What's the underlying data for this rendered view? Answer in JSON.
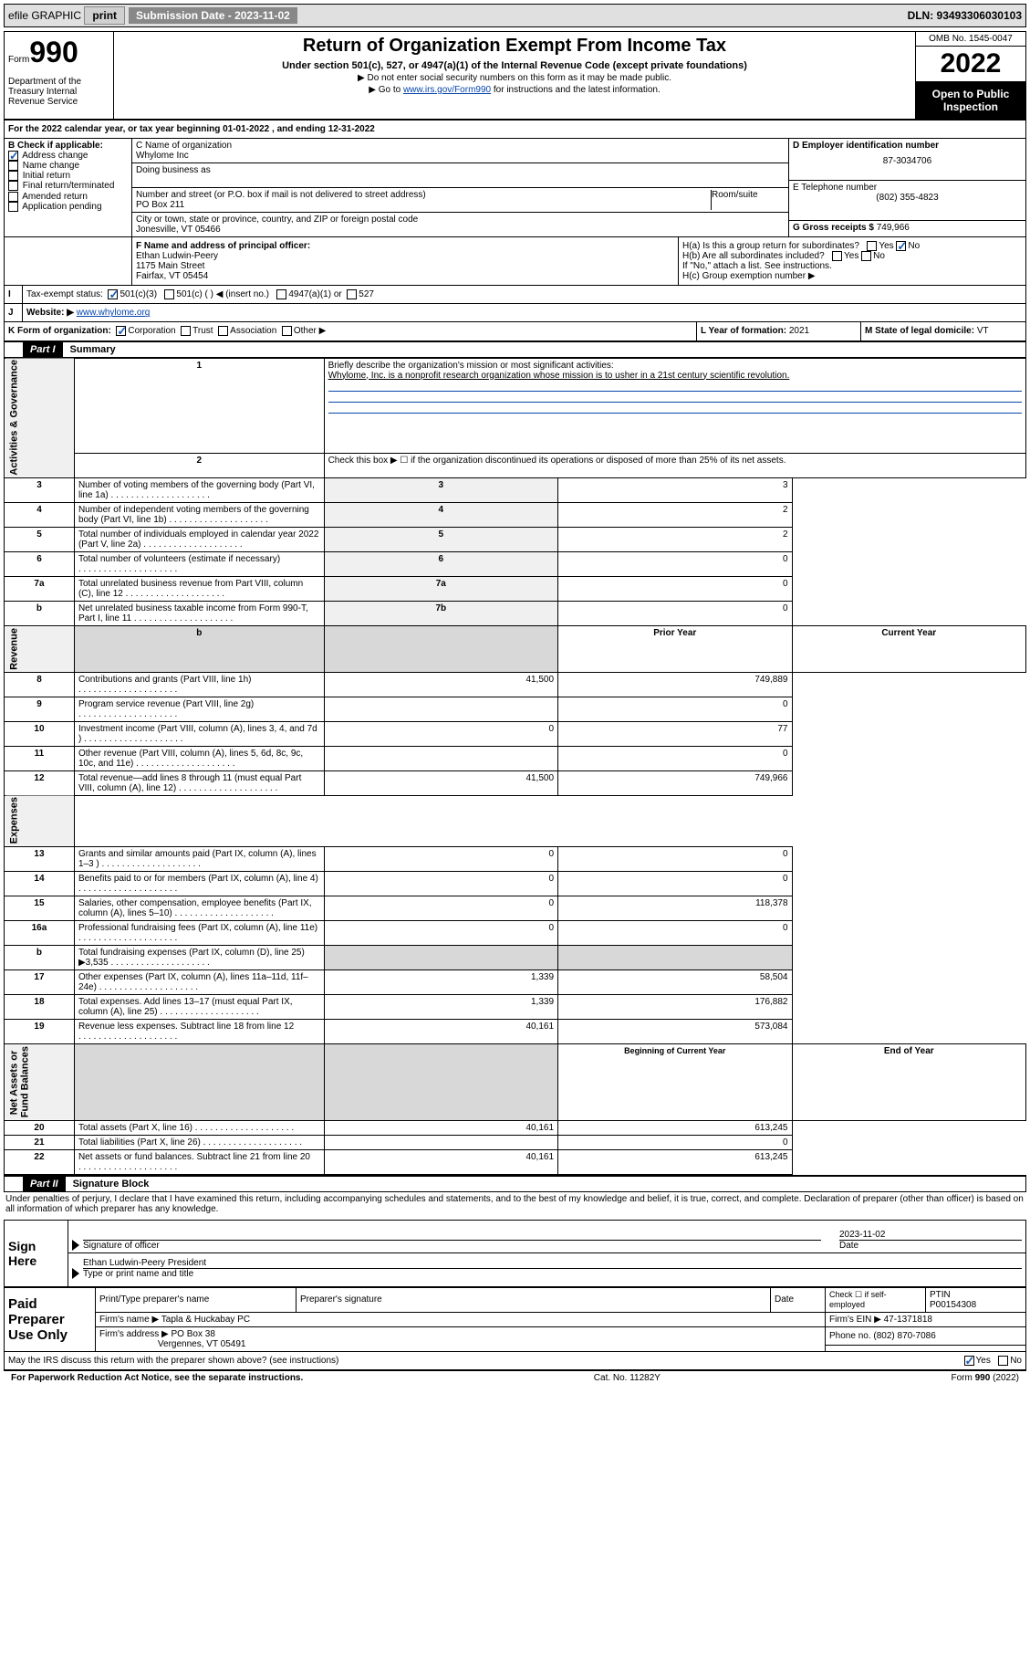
{
  "topbar": {
    "efile": "efile GRAPHIC",
    "print": "print",
    "sub_label": "Submission Date - 2023-11-02",
    "dln": "DLN: 93493306030103"
  },
  "header": {
    "form_prefix": "Form",
    "form_no": "990",
    "dept": "Department of the Treasury Internal Revenue Service",
    "title": "Return of Organization Exempt From Income Tax",
    "sub1": "Under section 501(c), 527, or 4947(a)(1) of the Internal Revenue Code (except private foundations)",
    "sub2": "▶ Do not enter social security numbers on this form as it may be made public.",
    "sub3_pre": "▶ Go to ",
    "sub3_link": "www.irs.gov/Form990",
    "sub3_post": " for instructions and the latest information.",
    "omb": "OMB No. 1545-0047",
    "year": "2022",
    "open": "Open to Public Inspection"
  },
  "line_a": "For the 2022 calendar year, or tax year beginning 01-01-2022   , and ending 12-31-2022",
  "B": {
    "title": "B Check if applicable:",
    "items": [
      "Address change",
      "Name change",
      "Initial return",
      "Final return/terminated",
      "Amended return",
      "Application pending"
    ],
    "checked_index": 0
  },
  "C": {
    "label_name": "C Name of organization",
    "org": "Whylome Inc",
    "dba_label": "Doing business as",
    "addr_label": "Number and street (or P.O. box if mail is not delivered to street address)",
    "addr": "PO Box 211",
    "room_label": "Room/suite",
    "city_label": "City or town, state or province, country, and ZIP or foreign postal code",
    "city": "Jonesville, VT  05466"
  },
  "D": {
    "label": "D Employer identification number",
    "value": "87-3034706"
  },
  "E": {
    "label": "E Telephone number",
    "value": "(802) 355-4823"
  },
  "G": {
    "label": "G Gross receipts $",
    "value": "749,966"
  },
  "F": {
    "label": "F Name and address of principal officer:",
    "name": "Ethan Ludwin-Peery",
    "addr1": "1175 Main Street",
    "addr2": "Fairfax, VT  05454"
  },
  "H": {
    "a": "H(a)  Is this a group return for subordinates?",
    "b": "H(b)  Are all subordinates included?",
    "b_note": "If \"No,\" attach a list. See instructions.",
    "c": "H(c)  Group exemption number ▶"
  },
  "I": {
    "label": "Tax-exempt status:",
    "c3": "501(c)(3)",
    "c": "501(c) (  ) ◀ (insert no.)",
    "a1": "4947(a)(1) or",
    "s527": "527"
  },
  "J": {
    "label": "Website: ▶",
    "value": "www.whylome.org"
  },
  "K": {
    "label": "K Form of organization:",
    "opts": [
      "Corporation",
      "Trust",
      "Association",
      "Other ▶"
    ]
  },
  "L": {
    "label": "L Year of formation:",
    "value": "2021"
  },
  "M": {
    "label": "M State of legal domicile:",
    "value": "VT"
  },
  "part1": {
    "hdr": "Part I",
    "title": "Summary",
    "line1_label": "Briefly describe the organization's mission or most significant activities:",
    "line1_text": "Whylome, Inc. is a nonprofit research organization whose mission is to usher in a 21st century scientific revolution.",
    "line2": "Check this box ▶ ☐  if the organization discontinued its operations or disposed of more than 25% of its net assets.",
    "rows_gov": [
      {
        "n": "3",
        "t": "Number of voting members of the governing body (Part VI, line 1a)",
        "box": "3",
        "val": "3"
      },
      {
        "n": "4",
        "t": "Number of independent voting members of the governing body (Part VI, line 1b)",
        "box": "4",
        "val": "2"
      },
      {
        "n": "5",
        "t": "Total number of individuals employed in calendar year 2022 (Part V, line 2a)",
        "box": "5",
        "val": "2"
      },
      {
        "n": "6",
        "t": "Total number of volunteers (estimate if necessary)",
        "box": "6",
        "val": "0"
      },
      {
        "n": "7a",
        "t": "Total unrelated business revenue from Part VIII, column (C), line 12",
        "box": "7a",
        "val": "0"
      },
      {
        "n": "b",
        "t": "Net unrelated business taxable income from Form 990-T, Part I, line 11",
        "box": "7b",
        "val": "0"
      }
    ],
    "col_prior": "Prior Year",
    "col_current": "Current Year",
    "rows_rev": [
      {
        "n": "8",
        "t": "Contributions and grants (Part VIII, line 1h)",
        "p": "41,500",
        "c": "749,889"
      },
      {
        "n": "9",
        "t": "Program service revenue (Part VIII, line 2g)",
        "p": "",
        "c": "0"
      },
      {
        "n": "10",
        "t": "Investment income (Part VIII, column (A), lines 3, 4, and 7d )",
        "p": "0",
        "c": "77"
      },
      {
        "n": "11",
        "t": "Other revenue (Part VIII, column (A), lines 5, 6d, 8c, 9c, 10c, and 11e)",
        "p": "",
        "c": "0"
      },
      {
        "n": "12",
        "t": "Total revenue—add lines 8 through 11 (must equal Part VIII, column (A), line 12)",
        "p": "41,500",
        "c": "749,966"
      }
    ],
    "rows_exp": [
      {
        "n": "13",
        "t": "Grants and similar amounts paid (Part IX, column (A), lines 1–3 )",
        "p": "0",
        "c": "0"
      },
      {
        "n": "14",
        "t": "Benefits paid to or for members (Part IX, column (A), line 4)",
        "p": "0",
        "c": "0"
      },
      {
        "n": "15",
        "t": "Salaries, other compensation, employee benefits (Part IX, column (A), lines 5–10)",
        "p": "0",
        "c": "118,378"
      },
      {
        "n": "16a",
        "t": "Professional fundraising fees (Part IX, column (A), line 11e)",
        "p": "0",
        "c": "0"
      },
      {
        "n": "b",
        "t": "Total fundraising expenses (Part IX, column (D), line 25) ▶3,535",
        "p": "shade",
        "c": "shade"
      },
      {
        "n": "17",
        "t": "Other expenses (Part IX, column (A), lines 11a–11d, 11f–24e)",
        "p": "1,339",
        "c": "58,504"
      },
      {
        "n": "18",
        "t": "Total expenses. Add lines 13–17 (must equal Part IX, column (A), line 25)",
        "p": "1,339",
        "c": "176,882"
      },
      {
        "n": "19",
        "t": "Revenue less expenses. Subtract line 18 from line 12",
        "p": "40,161",
        "c": "573,084"
      }
    ],
    "col_begin": "Beginning of Current Year",
    "col_end": "End of Year",
    "rows_net": [
      {
        "n": "20",
        "t": "Total assets (Part X, line 16)",
        "p": "40,161",
        "c": "613,245"
      },
      {
        "n": "21",
        "t": "Total liabilities (Part X, line 26)",
        "p": "",
        "c": "0"
      },
      {
        "n": "22",
        "t": "Net assets or fund balances. Subtract line 21 from line 20",
        "p": "40,161",
        "c": "613,245"
      }
    ]
  },
  "part2": {
    "hdr": "Part II",
    "title": "Signature Block",
    "decl": "Under penalties of perjury, I declare that I have examined this return, including accompanying schedules and statements, and to the best of my knowledge and belief, it is true, correct, and complete. Declaration of preparer (other than officer) is based on all information of which preparer has any knowledge."
  },
  "sign": {
    "here": "Sign Here",
    "sig_of": "Signature of officer",
    "date": "Date",
    "date_val": "2023-11-02",
    "name_title": "Ethan Ludwin-Peery  President",
    "name_label": "Type or print name and title"
  },
  "paid": {
    "title": "Paid Preparer Use Only",
    "h1": "Print/Type preparer's name",
    "h2": "Preparer's signature",
    "h3": "Date",
    "h4_check": "Check ☐ if self-employed",
    "h5": "PTIN",
    "h5_val": "P00154308",
    "firm_name_l": "Firm's name    ▶",
    "firm_name": "Tapla & Huckabay PC",
    "firm_ein_l": "Firm's EIN ▶",
    "firm_ein": "47-1371818",
    "firm_addr_l": "Firm's address ▶",
    "firm_addr1": "PO Box 38",
    "firm_addr2": "Vergennes, VT  05491",
    "phone_l": "Phone no.",
    "phone": "(802) 870-7086"
  },
  "discuss": "May the IRS discuss this return with the preparer shown above? (see instructions)",
  "footer": {
    "left": "For Paperwork Reduction Act Notice, see the separate instructions.",
    "mid": "Cat. No. 11282Y",
    "right_pre": "Form ",
    "right_b": "990",
    "right_post": " (2022)"
  }
}
